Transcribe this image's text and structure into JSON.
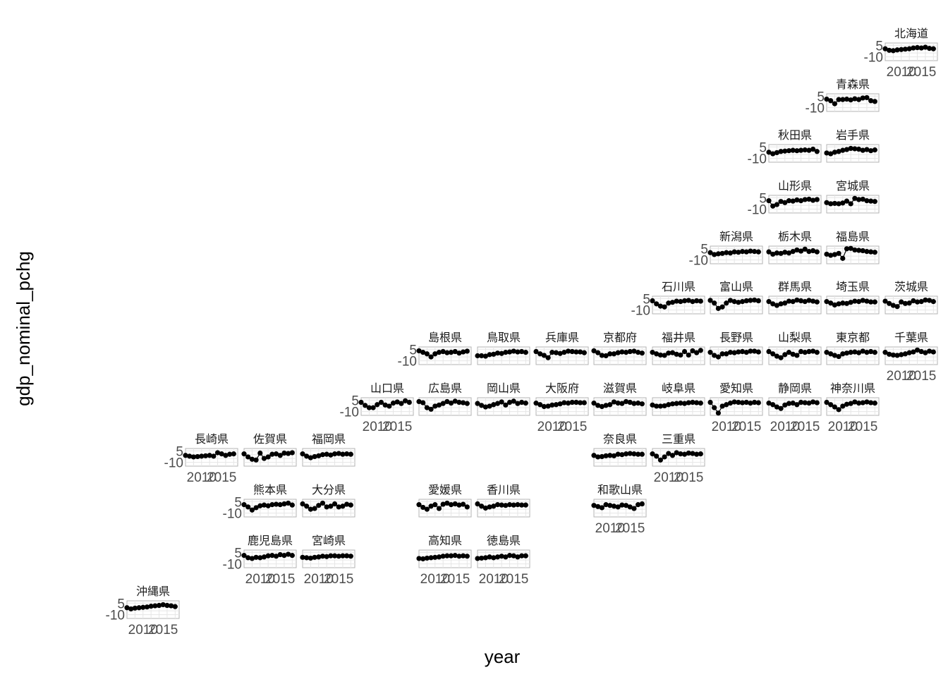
{
  "chart_data": {
    "type": "scatter",
    "title": "",
    "xlabel": "year",
    "ylabel": "gdp_nominal_pchg",
    "xlim": [
      2006,
      2019
    ],
    "ylim": [
      -15,
      8
    ],
    "x_ticks": [
      2010,
      2015
    ],
    "x_tick_labels": [
      "2010",
      "2015"
    ],
    "y_ticks": [
      -10,
      5
    ],
    "y_tick_labels": [
      "-10",
      "5"
    ],
    "grid": true,
    "legend": "none",
    "x": [
      2006,
      2007,
      2008,
      2009,
      2010,
      2011,
      2012,
      2013,
      2014,
      2015,
      2016,
      2017,
      2018
    ],
    "series": [
      {
        "name": "北海道",
        "values": [
          0.5,
          -1.5,
          -2.0,
          -1.0,
          -0.5,
          0.0,
          0.5,
          1.5,
          2.0,
          1.5,
          2.5,
          1.0,
          0.5
        ]
      },
      {
        "name": "青森県",
        "values": [
          1.0,
          -1.0,
          -5.0,
          0.5,
          0.5,
          1.0,
          0.0,
          1.5,
          0.5,
          2.5,
          3.0,
          -1.0,
          -2.0
        ]
      },
      {
        "name": "秋田県",
        "values": [
          -2.0,
          -4.0,
          -2.5,
          -1.0,
          -0.5,
          0.0,
          0.5,
          0.0,
          0.5,
          1.0,
          0.5,
          2.0,
          -1.0
        ]
      },
      {
        "name": "岩手県",
        "values": [
          -3.0,
          -4.0,
          -2.0,
          -1.0,
          0.5,
          1.5,
          3.0,
          2.5,
          2.0,
          0.5,
          1.5,
          0.0,
          1.0
        ]
      },
      {
        "name": "山形県",
        "values": [
          1.0,
          -6.0,
          -4.0,
          0.0,
          -1.5,
          1.0,
          0.5,
          2.0,
          1.0,
          2.5,
          3.0,
          1.5,
          2.5
        ]
      },
      {
        "name": "宮城県",
        "values": [
          -1.5,
          -3.0,
          -2.5,
          -3.0,
          -2.0,
          0.5,
          -3.0,
          4.0,
          2.5,
          3.0,
          1.0,
          0.5,
          0.0
        ]
      },
      {
        "name": "新潟県",
        "values": [
          -0.5,
          -3.0,
          -2.0,
          -1.5,
          -0.5,
          -1.0,
          0.5,
          0.0,
          1.0,
          0.5,
          1.5,
          1.0,
          0.5
        ]
      },
      {
        "name": "栃木県",
        "values": [
          0.5,
          -2.5,
          -1.0,
          -1.5,
          0.0,
          -1.0,
          1.0,
          3.0,
          1.5,
          4.0,
          1.0,
          2.0,
          0.5
        ]
      },
      {
        "name": "福島県",
        "values": [
          -2.5,
          -4.0,
          -3.0,
          -1.5,
          -8.0,
          4.5,
          5.0,
          3.0,
          2.5,
          2.0,
          1.0,
          0.5,
          0.0
        ]
      },
      {
        "name": "石川県",
        "values": [
          2.0,
          -2.0,
          -5.0,
          -6.0,
          -1.0,
          0.0,
          1.5,
          1.0,
          2.0,
          2.5,
          1.0,
          2.0,
          1.5
        ]
      },
      {
        "name": "富山県",
        "values": [
          2.5,
          -1.0,
          -8.0,
          -6.0,
          -1.0,
          2.5,
          1.0,
          0.0,
          1.0,
          2.0,
          2.5,
          3.0,
          2.0
        ]
      },
      {
        "name": "群馬県",
        "values": [
          1.0,
          -2.0,
          -4.0,
          -2.0,
          -1.0,
          1.5,
          1.0,
          3.0,
          2.0,
          1.0,
          2.5,
          1.5,
          0.5
        ]
      },
      {
        "name": "埼玉県",
        "values": [
          1.0,
          -1.0,
          -3.5,
          -2.0,
          -1.0,
          -1.5,
          0.0,
          1.5,
          1.0,
          2.5,
          1.5,
          0.5,
          0.5
        ]
      },
      {
        "name": "茨城県",
        "values": [
          1.5,
          -1.5,
          -4.0,
          -5.5,
          0.5,
          -1.5,
          -1.0,
          2.0,
          0.5,
          1.0,
          3.0,
          2.5,
          1.0
        ]
      },
      {
        "name": "島根県",
        "values": [
          3.0,
          1.0,
          -1.0,
          -5.0,
          -1.0,
          1.0,
          2.0,
          0.5,
          1.0,
          2.0,
          0.0,
          1.5,
          2.5
        ]
      },
      {
        "name": "鳥取県",
        "values": [
          -3.5,
          -3.5,
          -4.0,
          -2.0,
          -1.5,
          0.0,
          -0.5,
          1.0,
          1.5,
          2.5,
          1.5,
          2.0,
          1.0
        ]
      },
      {
        "name": "兵庫県",
        "values": [
          2.0,
          -1.0,
          -3.0,
          -6.0,
          1.0,
          0.5,
          -0.5,
          1.0,
          2.5,
          2.0,
          1.5,
          1.5,
          0.5
        ]
      },
      {
        "name": "京都府",
        "values": [
          3.0,
          0.5,
          -3.0,
          -3.5,
          -1.0,
          -1.0,
          0.5,
          1.5,
          1.0,
          2.0,
          2.5,
          1.0,
          0.0
        ]
      },
      {
        "name": "福井県",
        "values": [
          1.0,
          -1.0,
          -2.5,
          -3.0,
          0.0,
          0.5,
          -1.5,
          -2.5,
          2.0,
          -2.5,
          3.0,
          0.5,
          3.5
        ]
      },
      {
        "name": "長野県",
        "values": [
          1.0,
          -3.0,
          -5.0,
          -1.0,
          -1.0,
          1.0,
          0.5,
          1.5,
          2.0,
          1.0,
          2.5,
          2.5,
          1.5
        ]
      },
      {
        "name": "山梨県",
        "values": [
          2.0,
          -1.0,
          -4.0,
          -6.0,
          -2.0,
          1.0,
          -1.5,
          -3.0,
          2.0,
          1.0,
          2.0,
          2.5,
          1.0
        ]
      },
      {
        "name": "東京都",
        "values": [
          1.0,
          -1.0,
          -3.0,
          -4.5,
          -1.0,
          0.0,
          1.0,
          1.5,
          0.5,
          2.5,
          1.0,
          2.0,
          1.0
        ]
      },
      {
        "name": "千葉県",
        "values": [
          1.0,
          -1.5,
          -2.5,
          -3.0,
          -2.0,
          -1.0,
          0.5,
          1.5,
          4.0,
          2.0,
          0.5,
          2.5,
          1.5
        ]
      },
      {
        "name": "山口県",
        "values": [
          2.0,
          -2.0,
          -5.0,
          -5.0,
          -1.0,
          2.0,
          -1.5,
          -3.0,
          1.0,
          2.5,
          0.5,
          4.0,
          2.0
        ]
      },
      {
        "name": "広島県",
        "values": [
          3.0,
          1.5,
          -5.0,
          -7.0,
          -3.0,
          -1.5,
          0.5,
          3.0,
          1.0,
          3.5,
          2.0,
          1.5,
          0.5
        ]
      },
      {
        "name": "岡山県",
        "values": [
          0.5,
          -2.0,
          -4.0,
          -3.0,
          -1.0,
          0.5,
          2.5,
          -1.5,
          2.0,
          3.5,
          0.5,
          2.0,
          1.0
        ]
      },
      {
        "name": "大阪府",
        "values": [
          1.0,
          -1.0,
          -3.5,
          -3.0,
          -1.5,
          -1.0,
          0.0,
          1.5,
          1.0,
          2.0,
          2.0,
          1.5,
          1.5
        ]
      },
      {
        "name": "滋賀県",
        "values": [
          1.0,
          -2.0,
          -3.5,
          -2.0,
          -1.0,
          2.5,
          1.0,
          0.5,
          3.0,
          2.0,
          0.5,
          1.0,
          0.0
        ]
      },
      {
        "name": "岐阜県",
        "values": [
          -1.5,
          -3.0,
          -3.0,
          -2.5,
          -1.0,
          0.0,
          0.5,
          1.0,
          0.5,
          1.5,
          2.0,
          1.5,
          1.0
        ]
      },
      {
        "name": "愛知県",
        "values": [
          2.0,
          -5.0,
          -12.0,
          -3.0,
          -1.0,
          1.0,
          2.5,
          2.0,
          1.5,
          2.0,
          1.0,
          2.0,
          1.5
        ]
      },
      {
        "name": "静岡県",
        "values": [
          1.0,
          -1.0,
          -4.0,
          -6.0,
          -1.5,
          0.5,
          1.0,
          -1.0,
          2.0,
          1.5,
          1.0,
          2.5,
          1.5
        ]
      },
      {
        "name": "神奈川県",
        "values": [
          2.0,
          -1.0,
          -4.0,
          -7.5,
          -3.0,
          -0.5,
          0.5,
          2.5,
          1.0,
          1.5,
          2.5,
          1.5,
          1.0
        ]
      },
      {
        "name": "奈良県",
        "values": [
          -1.0,
          -3.0,
          -2.5,
          -1.5,
          -1.0,
          -1.5,
          0.5,
          0.0,
          1.0,
          1.5,
          1.0,
          0.5,
          0.5
        ]
      },
      {
        "name": "三重県",
        "values": [
          1.0,
          -2.0,
          -7.0,
          -3.0,
          1.5,
          -1.0,
          2.5,
          1.0,
          0.5,
          2.0,
          1.5,
          0.5,
          1.0
        ]
      },
      {
        "name": "長崎県",
        "values": [
          -1.0,
          -2.0,
          -3.0,
          -2.5,
          -2.0,
          -1.5,
          -1.0,
          -2.0,
          2.5,
          1.0,
          -1.0,
          0.5,
          1.0
        ]
      },
      {
        "name": "佐賀県",
        "values": [
          1.0,
          -3.0,
          -6.0,
          -7.0,
          2.0,
          -5.0,
          -3.0,
          0.5,
          1.0,
          -1.0,
          2.0,
          1.5,
          2.5
        ]
      },
      {
        "name": "福岡県",
        "values": [
          1.0,
          -2.0,
          -4.0,
          -2.5,
          -1.5,
          0.0,
          0.5,
          -0.5,
          1.0,
          1.5,
          0.5,
          1.0,
          0.5
        ]
      },
      {
        "name": "熊本県",
        "values": [
          1.0,
          -2.0,
          -6.0,
          -3.0,
          -0.5,
          0.5,
          -0.5,
          1.0,
          1.5,
          1.0,
          2.0,
          3.0,
          0.5
        ]
      },
      {
        "name": "大分県",
        "values": [
          2.0,
          -1.0,
          -5.0,
          -4.0,
          0.0,
          3.0,
          -2.0,
          -1.0,
          2.0,
          -2.0,
          -1.0,
          1.5,
          0.5
        ]
      },
      {
        "name": "愛媛県",
        "values": [
          1.0,
          -2.5,
          -5.0,
          -1.0,
          1.0,
          -4.0,
          1.5,
          3.0,
          1.0,
          2.0,
          0.5,
          1.5,
          -2.0
        ]
      },
      {
        "name": "香川県",
        "values": [
          2.0,
          -1.0,
          -3.5,
          -2.0,
          -1.0,
          1.0,
          0.5,
          0.0,
          1.0,
          0.5,
          1.0,
          0.5,
          0.5
        ]
      },
      {
        "name": "和歌山県",
        "values": [
          0.0,
          -1.5,
          -3.0,
          1.0,
          0.0,
          -1.0,
          -2.0,
          0.5,
          0.0,
          -2.0,
          -4.0,
          1.0,
          2.0
        ]
      },
      {
        "name": "鹿児島県",
        "values": [
          1.0,
          -2.0,
          -3.0,
          -1.5,
          -2.0,
          -1.0,
          0.5,
          1.0,
          0.0,
          2.0,
          1.0,
          2.5,
          1.0
        ]
      },
      {
        "name": "宮崎県",
        "values": [
          -1.5,
          -2.0,
          -2.5,
          -1.5,
          -1.0,
          0.0,
          -0.5,
          0.5,
          0.5,
          0.0,
          0.5,
          0.5,
          0.0
        ]
      },
      {
        "name": "高知県",
        "values": [
          -3.0,
          -3.5,
          -2.5,
          -2.0,
          -1.5,
          -1.0,
          0.0,
          0.5,
          0.5,
          1.0,
          0.0,
          0.5,
          0.0
        ]
      },
      {
        "name": "徳島県",
        "values": [
          -3.0,
          -2.5,
          -2.0,
          -1.0,
          -2.0,
          -1.0,
          0.0,
          -1.0,
          1.0,
          0.5,
          -1.0,
          0.5,
          0.5
        ]
      },
      {
        "name": "沖縄県",
        "values": [
          -1.0,
          -2.5,
          -1.5,
          -1.0,
          -0.5,
          0.0,
          1.0,
          1.5,
          2.0,
          3.0,
          2.0,
          1.5,
          0.5
        ]
      }
    ]
  }
}
